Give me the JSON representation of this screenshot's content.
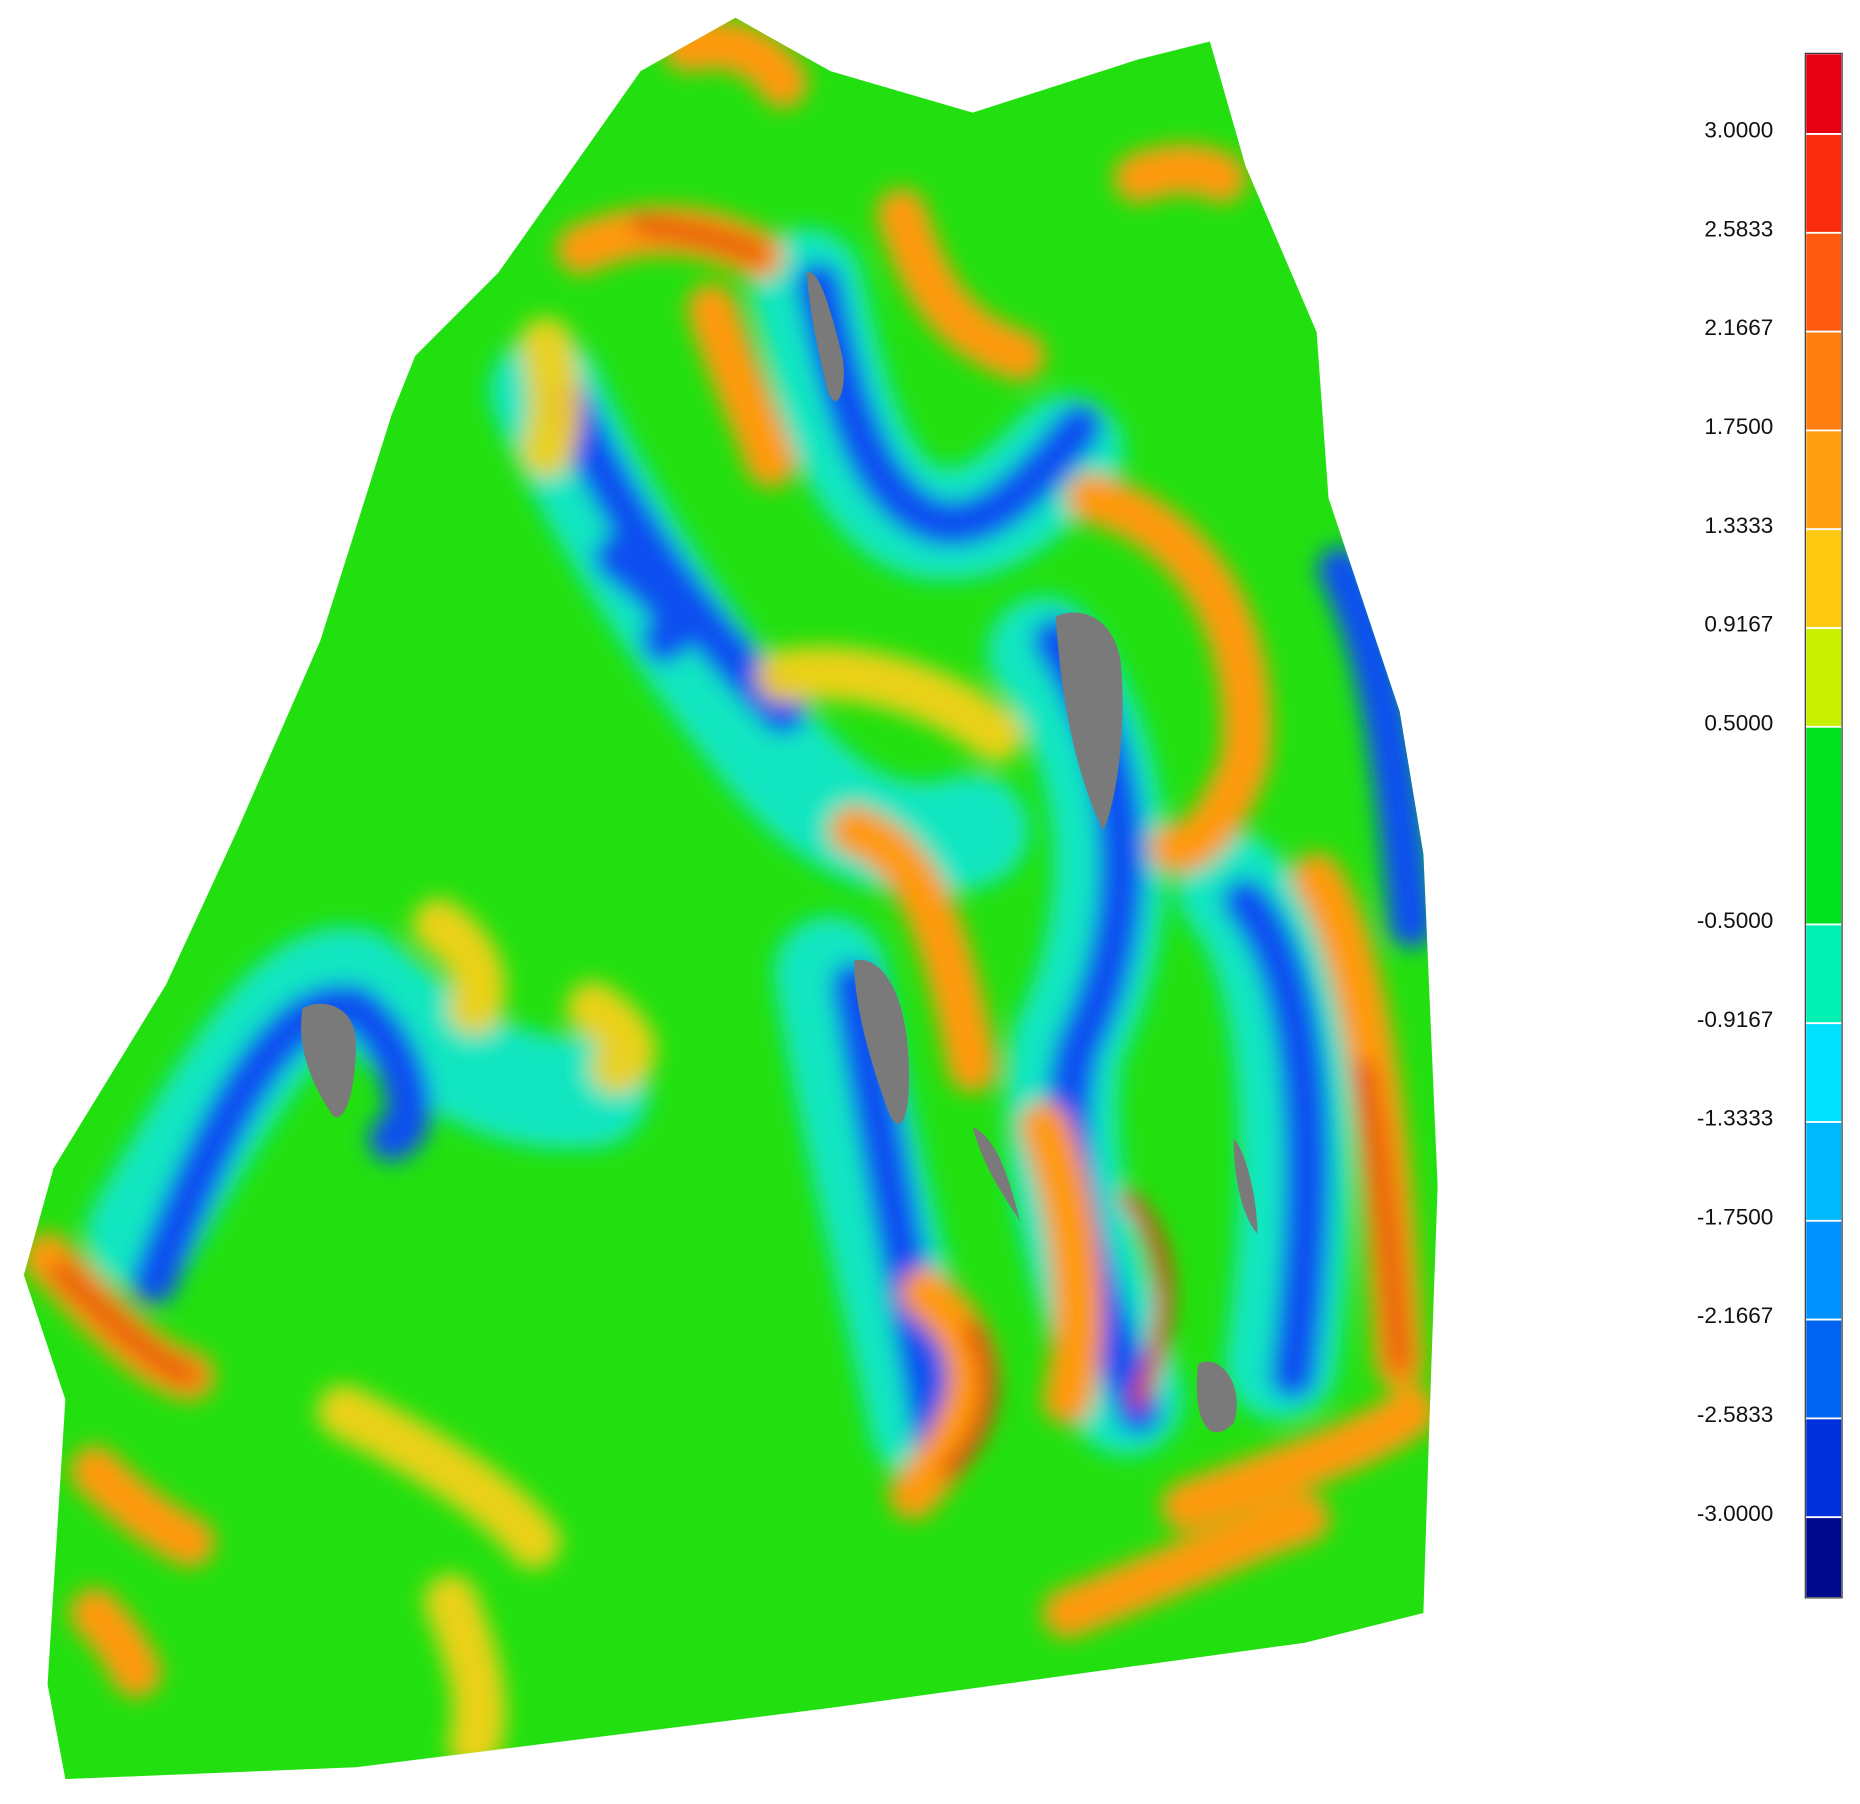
{
  "colorbar": {
    "labels": [
      "3.0000",
      "2.5833",
      "2.1667",
      "1.7500",
      "1.3333",
      "0.9167",
      "0.5000",
      "-0.5000",
      "-0.9167",
      "-1.3333",
      "-1.7500",
      "-2.1667",
      "-2.5833",
      "-3.0000"
    ],
    "colors": [
      "#e60012",
      "#fa2a0c",
      "#ff5a10",
      "#ff7e10",
      "#ffa010",
      "#ffc810",
      "#c8f000",
      "#00e21e",
      "#00f0b4",
      "#00e0ff",
      "#00baff",
      "#0092ff",
      "#0064f0",
      "#0030dc",
      "#000a8c"
    ]
  }
}
